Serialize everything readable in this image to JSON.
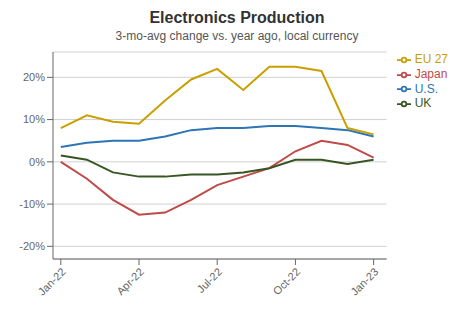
{
  "chart_data": {
    "type": "line",
    "title": "Electronics Production",
    "subtitle": "3-mo-avg change vs. year ago, local currency",
    "x": [
      0,
      1,
      2,
      3,
      4,
      5,
      6,
      7,
      8,
      9,
      10,
      11,
      12
    ],
    "series": [
      {
        "name": "EU 27",
        "color": "#C8A000",
        "values": [
          8.0,
          11.0,
          9.5,
          9.0,
          14.5,
          19.5,
          22.0,
          17.0,
          22.5,
          22.5,
          21.5,
          8.0,
          6.5
        ]
      },
      {
        "name": "U.S.",
        "color": "#2E75B6",
        "values": [
          3.5,
          4.5,
          5.0,
          5.0,
          6.0,
          7.5,
          8.0,
          8.0,
          8.5,
          8.5,
          8.0,
          7.5,
          6.0
        ]
      },
      {
        "name": "Japan",
        "color": "#BE4B48",
        "values": [
          0.0,
          -4.0,
          -9.0,
          -12.5,
          -12.0,
          -9.0,
          -5.5,
          -3.5,
          -1.5,
          2.5,
          5.0,
          4.0,
          1.0
        ]
      },
      {
        "name": "UK",
        "color": "#375623",
        "values": [
          1.5,
          0.5,
          -2.5,
          -3.5,
          -3.5,
          -3.0,
          -3.0,
          -2.5,
          -1.5,
          0.5,
          0.5,
          -0.5,
          0.5
        ]
      }
    ],
    "xlim": [
      -0.3,
      12.5
    ],
    "xticks": [
      {
        "value": 0,
        "label": "Jan-22"
      },
      {
        "value": 3,
        "label": "Apr-22"
      },
      {
        "value": 6,
        "label": "Jul-22"
      },
      {
        "value": 9,
        "label": "Oct-22"
      },
      {
        "value": 12,
        "label": "Jan-23"
      }
    ],
    "ylim": [
      -23,
      26
    ],
    "yticks": [
      {
        "value": -20,
        "label": "-20%"
      },
      {
        "value": -10,
        "label": "-10%"
      },
      {
        "value": 0,
        "label": "0%"
      },
      {
        "value": 10,
        "label": "10%"
      },
      {
        "value": 20,
        "label": "20%"
      }
    ],
    "grid": "y",
    "legend": "right"
  }
}
